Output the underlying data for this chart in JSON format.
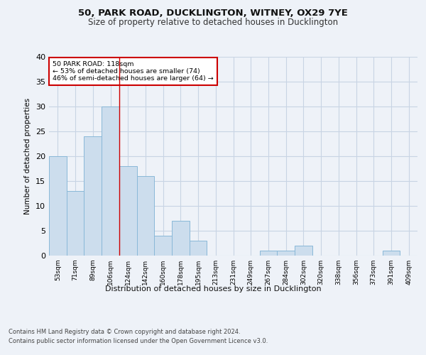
{
  "title_line1": "50, PARK ROAD, DUCKLINGTON, WITNEY, OX29 7YE",
  "title_line2": "Size of property relative to detached houses in Ducklington",
  "xlabel": "Distribution of detached houses by size in Ducklington",
  "ylabel": "Number of detached properties",
  "categories": [
    "53sqm",
    "71sqm",
    "89sqm",
    "106sqm",
    "124sqm",
    "142sqm",
    "160sqm",
    "178sqm",
    "195sqm",
    "213sqm",
    "231sqm",
    "249sqm",
    "267sqm",
    "284sqm",
    "302sqm",
    "320sqm",
    "338sqm",
    "356sqm",
    "373sqm",
    "391sqm",
    "409sqm"
  ],
  "values": [
    20,
    13,
    24,
    30,
    18,
    16,
    4,
    7,
    3,
    0,
    0,
    0,
    1,
    1,
    2,
    0,
    0,
    0,
    0,
    1,
    0
  ],
  "bar_color": "#ccdded",
  "bar_edge_color": "#89b8d8",
  "grid_color": "#c8d4e4",
  "annotation_box_text": "50 PARK ROAD: 118sqm\n← 53% of detached houses are smaller (74)\n46% of semi-detached houses are larger (64) →",
  "annotation_box_color": "#ffffff",
  "annotation_box_edge_color": "#cc0000",
  "vline_x": 3.5,
  "vline_color": "#cc0000",
  "ylim": [
    0,
    40
  ],
  "yticks": [
    0,
    5,
    10,
    15,
    20,
    25,
    30,
    35,
    40
  ],
  "footnote_line1": "Contains HM Land Registry data © Crown copyright and database right 2024.",
  "footnote_line2": "Contains public sector information licensed under the Open Government Licence v3.0.",
  "background_color": "#eef2f8",
  "plot_background_color": "#eef2f8"
}
